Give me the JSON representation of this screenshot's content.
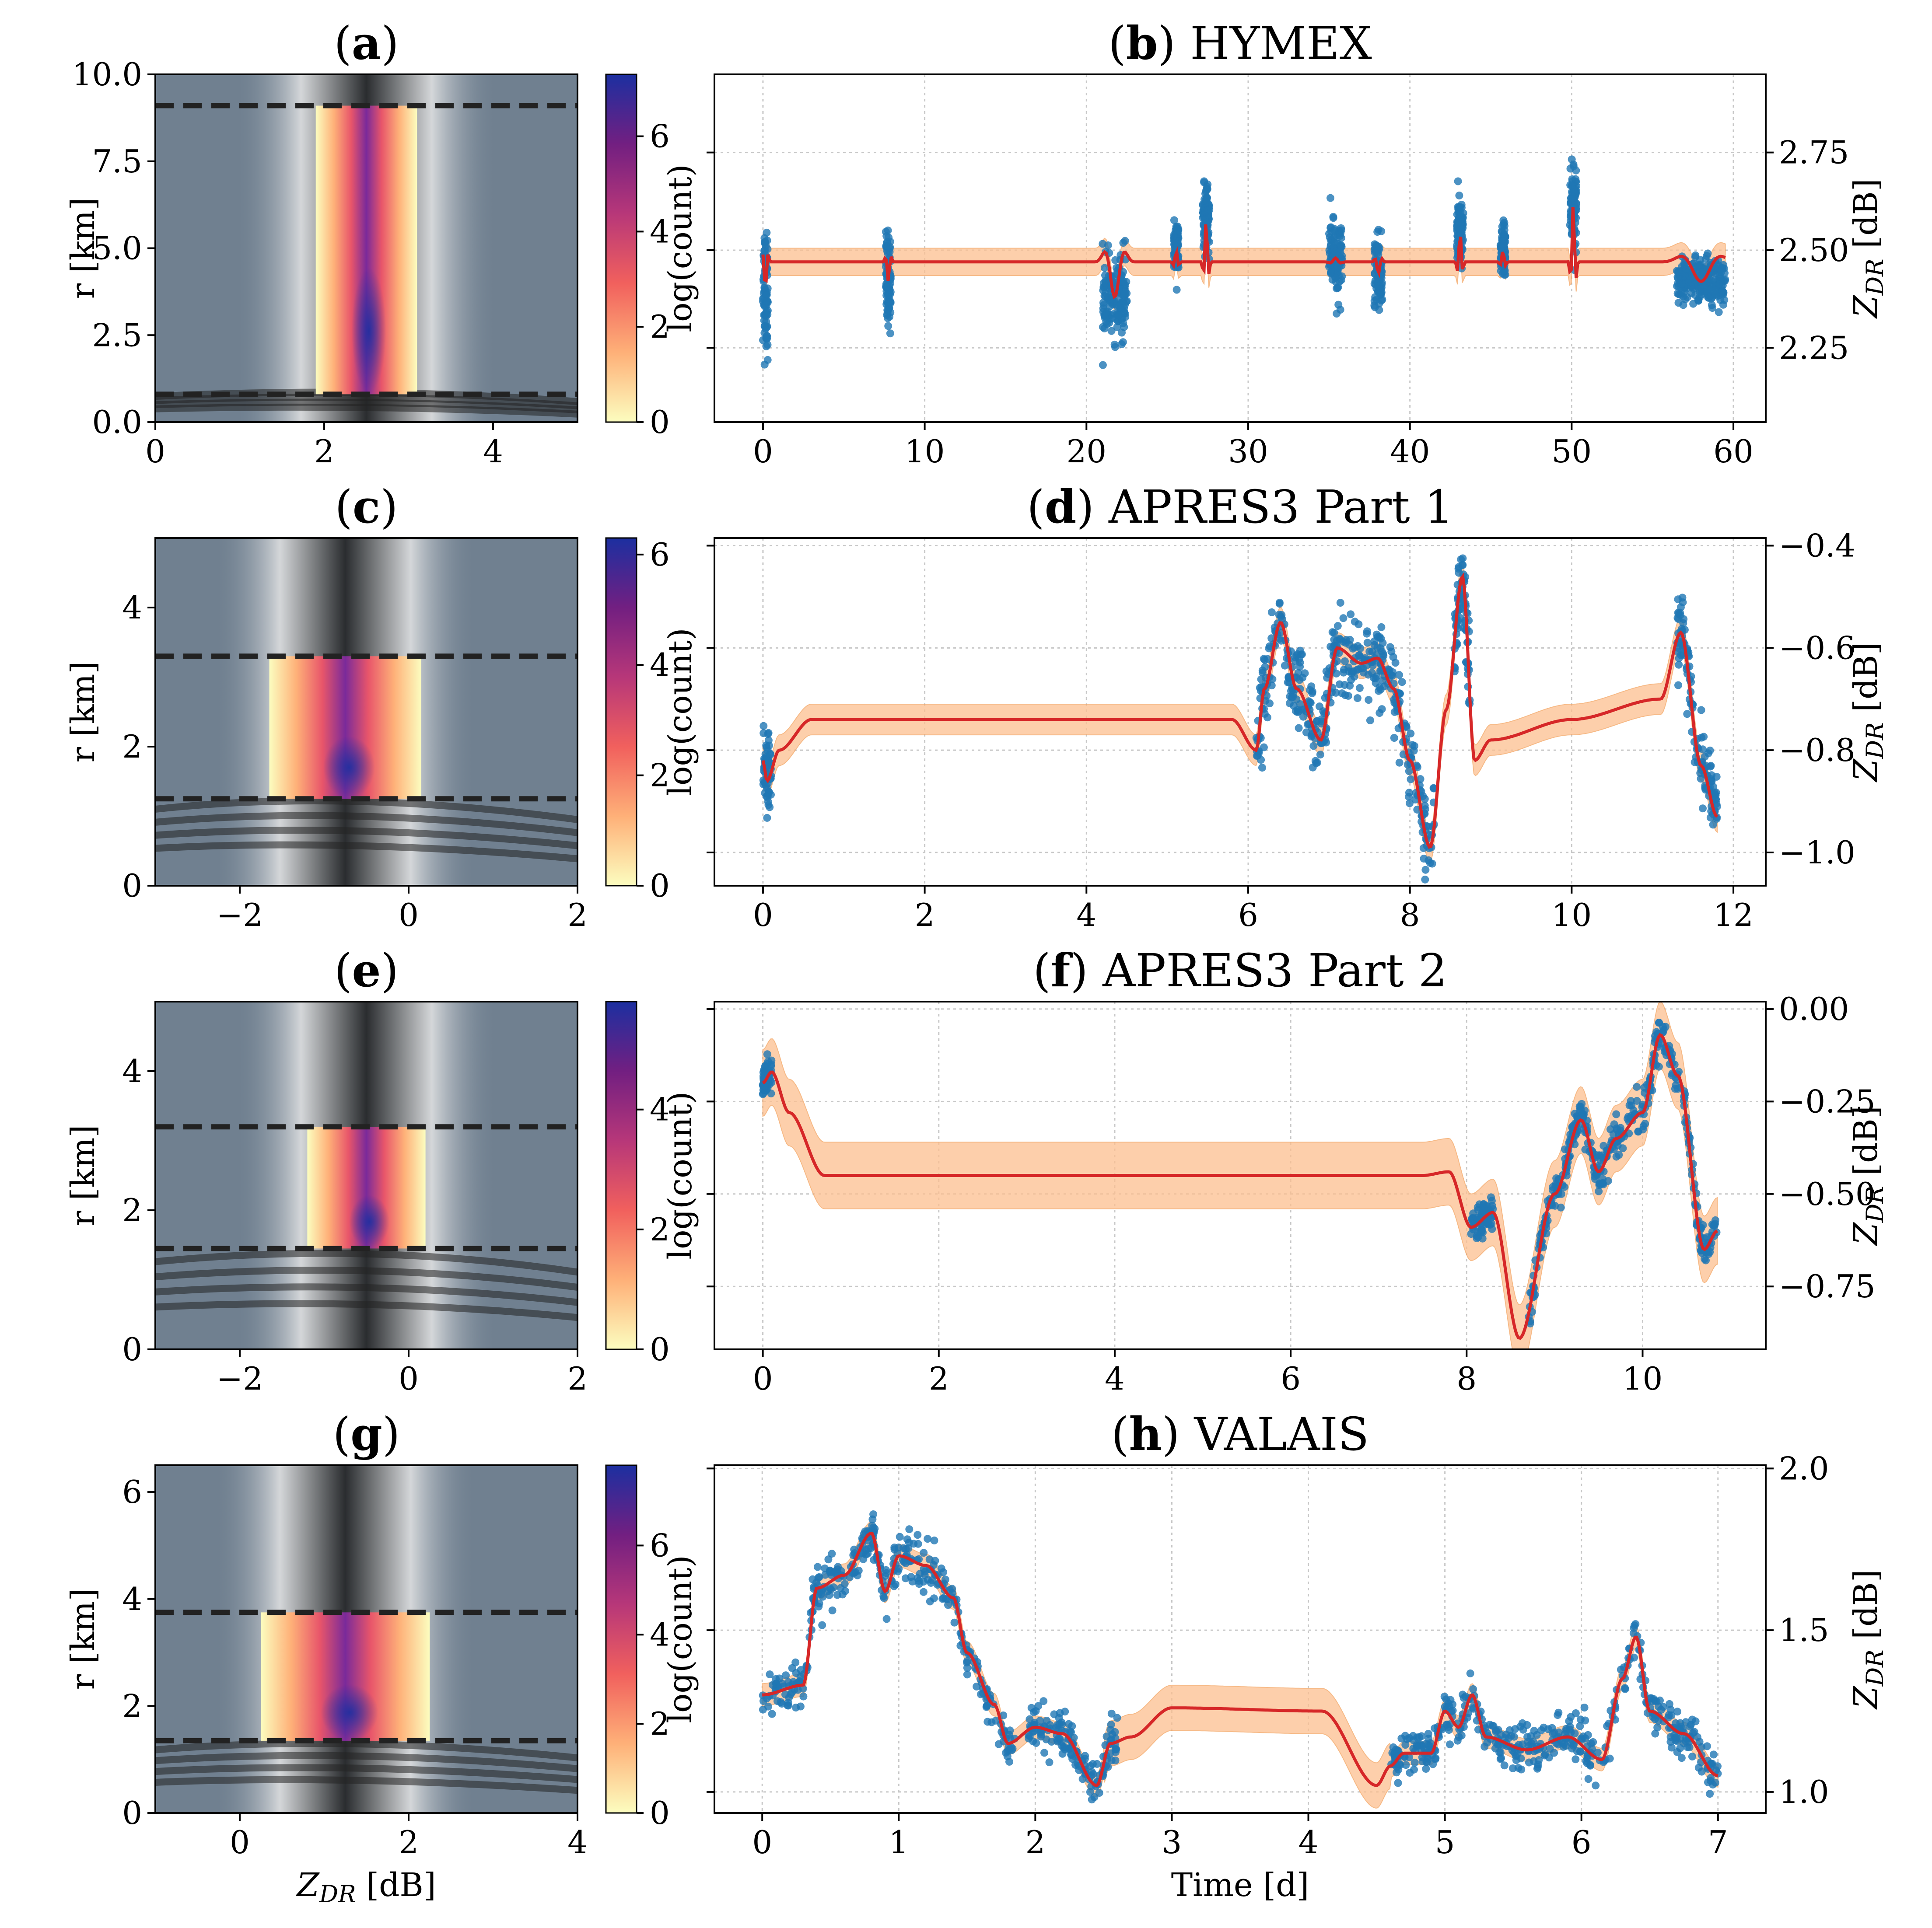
{
  "colors": {
    "panel_background": "#708090",
    "scatter": "#1f77b4",
    "fit_line": "#d62728",
    "band": "#fdbf8f",
    "grid": "#c8c8c8",
    "dashed": "#222222"
  },
  "chart_data": [
    {
      "id": "a",
      "type": "heatmap",
      "title_letter": "a",
      "title_text": "",
      "xlabel": "",
      "ylabel": "r [km]",
      "xlim": [
        0,
        5
      ],
      "ylim": [
        0,
        10
      ],
      "xticks": [
        0,
        2,
        4
      ],
      "xtick_labels": [
        "0",
        "2",
        "4"
      ],
      "yticks": [
        0,
        2.5,
        5,
        7.5,
        10
      ],
      "ytick_labels": [
        "0.0",
        "2.5",
        "5.0",
        "7.5",
        "10.0"
      ],
      "dashed_lines_r": [
        0.8,
        9.1
      ],
      "colorbar_label": "log(count)",
      "colorbar_max": 7.3,
      "colorbar_ticks": [
        0,
        2,
        4,
        6
      ],
      "colorbar_tick_labels": [
        "0",
        "2",
        "4",
        "6"
      ],
      "core_center_zdr": 2.5,
      "core_width_zdr": 0.6
    },
    {
      "id": "b",
      "type": "scatter",
      "title_letter": "b",
      "title_text": "HYMEX",
      "xlabel": "",
      "ylabel": "Z_DR [dB]",
      "ylabel_main": "Z",
      "ylabel_sub": "DR",
      "ylabel_unit": " [dB]",
      "xlim": [
        -3,
        62
      ],
      "ylim": [
        2.06,
        2.95
      ],
      "xticks": [
        0,
        10,
        20,
        30,
        40,
        50,
        60
      ],
      "xtick_labels": [
        "0",
        "10",
        "20",
        "30",
        "40",
        "50",
        "60"
      ],
      "yticks": [
        2.25,
        2.5,
        2.75
      ],
      "ytick_labels": [
        "2.25",
        "2.50",
        "2.75"
      ],
      "baseline": 2.47,
      "band_halfwidth": 0.035,
      "segments": [
        {
          "t_start": 0.0,
          "t_end": 0.3,
          "mean": 2.4,
          "spread": 0.16
        },
        {
          "t_start": 7.6,
          "t_end": 7.9,
          "mean": 2.42,
          "spread": 0.12
        },
        {
          "t_start": 21.0,
          "t_end": 22.5,
          "mean": 2.38,
          "spread": 0.1
        },
        {
          "t_start": 25.4,
          "t_end": 25.7,
          "mean": 2.5,
          "spread": 0.07
        },
        {
          "t_start": 27.2,
          "t_end": 27.6,
          "mean": 2.58,
          "spread": 0.08
        },
        {
          "t_start": 35.0,
          "t_end": 35.8,
          "mean": 2.48,
          "spread": 0.1
        },
        {
          "t_start": 37.8,
          "t_end": 38.3,
          "mean": 2.44,
          "spread": 0.09
        },
        {
          "t_start": 42.9,
          "t_end": 43.3,
          "mean": 2.55,
          "spread": 0.08
        },
        {
          "t_start": 45.6,
          "t_end": 45.9,
          "mean": 2.5,
          "spread": 0.06
        },
        {
          "t_start": 49.9,
          "t_end": 50.3,
          "mean": 2.62,
          "spread": 0.12
        },
        {
          "t_start": 56.5,
          "t_end": 59.5,
          "mean": 2.42,
          "spread": 0.06
        }
      ]
    },
    {
      "id": "c",
      "type": "heatmap",
      "title_letter": "c",
      "title_text": "",
      "xlabel": "",
      "ylabel": "r [km]",
      "xlim": [
        -3,
        2
      ],
      "ylim": [
        0,
        5
      ],
      "xticks": [
        -2,
        0,
        2
      ],
      "xtick_labels": [
        "−2",
        "0",
        "2"
      ],
      "yticks": [
        0,
        2,
        4
      ],
      "ytick_labels": [
        "0",
        "2",
        "4"
      ],
      "dashed_lines_r": [
        1.25,
        3.3
      ],
      "colorbar_label": "log(count)",
      "colorbar_max": 6.3,
      "colorbar_ticks": [
        0,
        2,
        4,
        6
      ],
      "colorbar_tick_labels": [
        "0",
        "2",
        "4",
        "6"
      ],
      "core_center_zdr": -0.75,
      "core_width_zdr": 0.9
    },
    {
      "id": "d",
      "type": "scatter",
      "title_letter": "d",
      "title_text": "APRES3 Part 1",
      "xlabel": "",
      "ylabel": "Z_DR [dB]",
      "ylabel_main": "Z",
      "ylabel_sub": "DR",
      "ylabel_unit": " [dB]",
      "xlim": [
        -0.6,
        12.4
      ],
      "ylim": [
        -1.065,
        -0.385
      ],
      "xticks": [
        0,
        2,
        4,
        6,
        8,
        10,
        12
      ],
      "xtick_labels": [
        "0",
        "2",
        "4",
        "6",
        "8",
        "10",
        "12"
      ],
      "yticks": [
        -1.0,
        -0.8,
        -0.6,
        -0.4
      ],
      "ytick_labels": [
        "−1.0",
        "−0.8",
        "−0.6",
        "−0.4"
      ],
      "fit_knots_t": [
        0,
        0.05,
        0.2,
        0.6,
        5.8,
        6.1,
        6.2,
        6.4,
        6.6,
        6.9,
        7.1,
        7.4,
        7.6,
        7.8,
        8.0,
        8.25,
        8.45,
        8.65,
        8.8,
        9.0,
        10.0,
        11.1,
        11.35,
        11.6,
        11.8
      ],
      "fit_knots_z": [
        -0.82,
        -0.86,
        -0.8,
        -0.74,
        -0.74,
        -0.8,
        -0.68,
        -0.55,
        -0.68,
        -0.78,
        -0.6,
        -0.63,
        -0.62,
        -0.68,
        -0.82,
        -0.99,
        -0.72,
        -0.46,
        -0.82,
        -0.78,
        -0.74,
        -0.7,
        -0.57,
        -0.83,
        -0.93
      ],
      "band_halfwidth": 0.03,
      "data_t_ranges": [
        [
          0,
          0.1
        ],
        [
          6.1,
          8.3
        ],
        [
          8.55,
          8.75
        ],
        [
          11.3,
          11.8
        ]
      ],
      "data_noise": 0.04
    },
    {
      "id": "e",
      "type": "heatmap",
      "title_letter": "e",
      "title_text": "",
      "xlabel": "",
      "ylabel": "r [km]",
      "xlim": [
        -3,
        2
      ],
      "ylim": [
        0,
        5
      ],
      "xticks": [
        -2,
        0,
        2
      ],
      "xtick_labels": [
        "−2",
        "0",
        "2"
      ],
      "yticks": [
        0,
        2,
        4
      ],
      "ytick_labels": [
        "0",
        "2",
        "4"
      ],
      "dashed_lines_r": [
        1.45,
        3.2
      ],
      "colorbar_label": "log(count)",
      "colorbar_max": 5.8,
      "colorbar_ticks": [
        0,
        2,
        4
      ],
      "colorbar_tick_labels": [
        "0",
        "2",
        "4"
      ],
      "core_center_zdr": -0.5,
      "core_width_zdr": 0.7
    },
    {
      "id": "f",
      "type": "scatter",
      "title_letter": "f",
      "title_text": "APRES3 Part 2",
      "xlabel": "",
      "ylabel": "Z_DR [dB]",
      "ylabel_main": "Z",
      "ylabel_sub": "DR",
      "ylabel_unit": " [dB]",
      "xlim": [
        -0.55,
        11.4
      ],
      "ylim": [
        -0.92,
        0.02
      ],
      "xticks": [
        0,
        2,
        4,
        6,
        8,
        10
      ],
      "xtick_labels": [
        "0",
        "2",
        "4",
        "6",
        "8",
        "10"
      ],
      "yticks": [
        -0.75,
        -0.5,
        -0.25,
        0.0
      ],
      "ytick_labels": [
        "−0.75",
        "−0.50",
        "−0.25",
        "0.00"
      ],
      "fit_knots_t": [
        0,
        0.1,
        0.3,
        0.7,
        7.5,
        7.8,
        8.05,
        8.3,
        8.6,
        9.0,
        9.3,
        9.5,
        9.7,
        10.0,
        10.2,
        10.4,
        10.7,
        10.85
      ],
      "fit_knots_z": [
        -0.2,
        -0.17,
        -0.28,
        -0.45,
        -0.45,
        -0.44,
        -0.59,
        -0.55,
        -0.89,
        -0.5,
        -0.3,
        -0.44,
        -0.35,
        -0.28,
        -0.07,
        -0.18,
        -0.65,
        -0.6
      ],
      "band_halfwidth": 0.09,
      "data_t_ranges": [
        [
          0,
          0.1
        ],
        [
          8.05,
          8.3
        ],
        [
          8.7,
          10.85
        ]
      ],
      "data_noise": 0.025
    },
    {
      "id": "g",
      "type": "heatmap",
      "title_letter": "g",
      "title_text": "",
      "xlabel": "Z_DR [dB]",
      "xlabel_main": "Z",
      "xlabel_sub": "DR",
      "xlabel_unit": " [dB]",
      "ylabel": "r [km]",
      "xlim": [
        -1,
        4
      ],
      "ylim": [
        0,
        6.5
      ],
      "xticks": [
        0,
        2,
        4
      ],
      "xtick_labels": [
        "0",
        "2",
        "4"
      ],
      "yticks": [
        0,
        2,
        4,
        6
      ],
      "ytick_labels": [
        "0",
        "2",
        "4",
        "6"
      ],
      "dashed_lines_r": [
        1.35,
        3.75
      ],
      "colorbar_label": "log(count)",
      "colorbar_max": 7.8,
      "colorbar_ticks": [
        0,
        2,
        4,
        6
      ],
      "colorbar_tick_labels": [
        "0",
        "2",
        "4",
        "6"
      ],
      "core_center_zdr": 1.25,
      "core_width_zdr": 1.0
    },
    {
      "id": "h",
      "type": "scatter",
      "title_letter": "h",
      "title_text": "VALAIS",
      "xlabel": "Time [d]",
      "ylabel": "Z_DR [dB]",
      "ylabel_main": "Z",
      "ylabel_sub": "DR",
      "ylabel_unit": " [dB]",
      "xlim": [
        -0.35,
        7.35
      ],
      "ylim": [
        0.935,
        2.01
      ],
      "xticks": [
        0,
        1,
        2,
        3,
        4,
        5,
        6,
        7
      ],
      "xtick_labels": [
        "0",
        "1",
        "2",
        "3",
        "4",
        "5",
        "6",
        "7"
      ],
      "yticks": [
        1.0,
        1.5,
        2.0
      ],
      "ytick_labels": [
        "1.0",
        "1.5",
        "2.0"
      ],
      "fit_knots_t": [
        0,
        0.3,
        0.4,
        0.6,
        0.8,
        0.9,
        1.0,
        1.2,
        1.4,
        1.5,
        1.7,
        1.8,
        2.0,
        2.2,
        2.45,
        2.55,
        2.7,
        3.0,
        4.1,
        4.5,
        4.6,
        4.7,
        4.9,
        5.0,
        5.1,
        5.2,
        5.3,
        5.6,
        5.9,
        6.15,
        6.3,
        6.4,
        6.5,
        6.75,
        7.0
      ],
      "fit_knots_z": [
        1.3,
        1.33,
        1.63,
        1.67,
        1.8,
        1.62,
        1.73,
        1.7,
        1.6,
        1.43,
        1.27,
        1.15,
        1.2,
        1.18,
        1.02,
        1.15,
        1.17,
        1.26,
        1.25,
        1.02,
        1.08,
        1.12,
        1.12,
        1.25,
        1.2,
        1.3,
        1.17,
        1.13,
        1.17,
        1.1,
        1.35,
        1.48,
        1.25,
        1.18,
        1.05
      ],
      "band_halfwidth": 0.035,
      "band_wide_range": [
        2.5,
        4.6
      ],
      "band_wide_halfwidth": 0.07,
      "data_t_ranges": [
        [
          0,
          1.85
        ],
        [
          1.95,
          2.6
        ],
        [
          4.6,
          7.0
        ]
      ],
      "data_noise": 0.035
    }
  ]
}
